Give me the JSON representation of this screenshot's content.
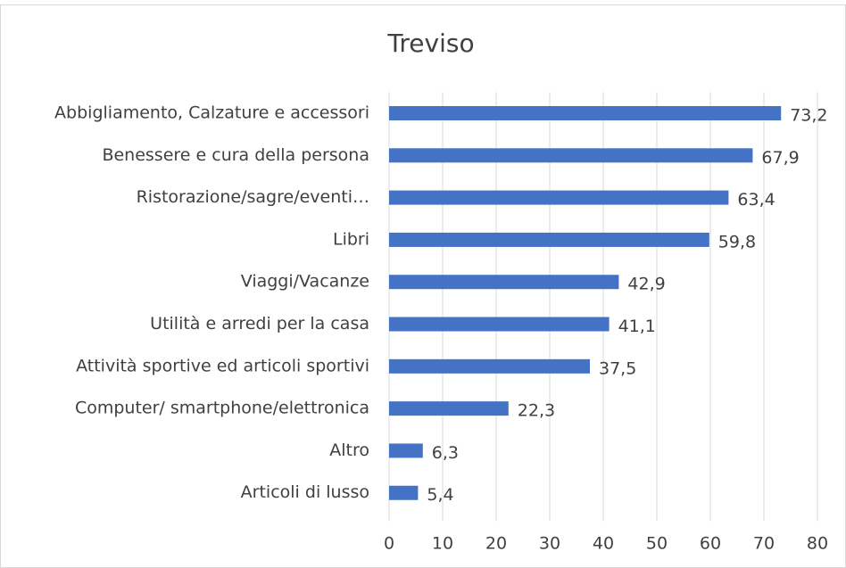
{
  "chart_data": {
    "type": "bar",
    "orientation": "horizontal",
    "title": "Treviso",
    "categories": [
      "Abbigliamento, Calzature e accessori",
      "Benessere e cura della persona",
      "Ristorazione/sagre/eventi…",
      "Libri",
      "Viaggi/Vacanze",
      "Utilità e arredi per la casa",
      "Attività sportive ed articoli sportivi",
      "Computer/ smartphone/elettronica",
      "Altro",
      "Articoli di lusso"
    ],
    "values": [
      73.2,
      67.9,
      63.4,
      59.8,
      42.9,
      41.1,
      37.5,
      22.3,
      6.3,
      5.4
    ],
    "value_labels": [
      "73,2",
      "67,9",
      "63,4",
      "59,8",
      "42,9",
      "41,1",
      "37,5",
      "22,3",
      "6,3",
      "5,4"
    ],
    "color": "#4472c4",
    "xlim": [
      0,
      80
    ],
    "xticks": [
      0,
      10,
      20,
      30,
      40,
      50,
      60,
      70,
      80
    ],
    "grid": true
  }
}
